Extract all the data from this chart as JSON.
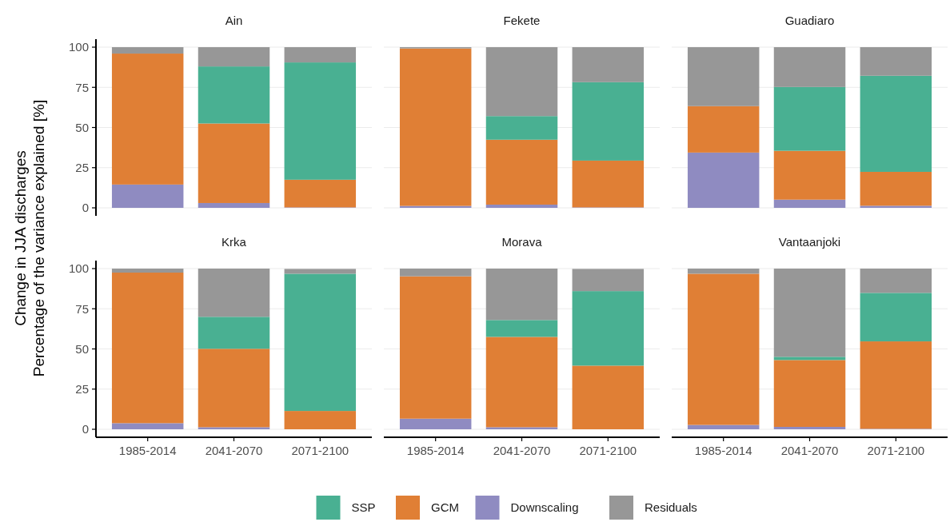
{
  "chart_data": [
    {
      "type": "bar",
      "title": "Ain",
      "ylabel": "Change in JJA discharges\nPercentage of the variance explained [%]",
      "categories": [
        "1985-2014",
        "2041-2070",
        "2071-2100"
      ],
      "stacked": true,
      "ylim": [
        0,
        100
      ],
      "yticks": [
        0,
        25,
        50,
        75,
        100
      ],
      "grid": "y",
      "legend": "bottom",
      "tick_labels": "y",
      "series": [
        {
          "name": "Downscaling",
          "color": "#8f8bc1",
          "values": [
            14.5,
            3,
            0.3
          ]
        },
        {
          "name": "GCM",
          "color": "#e07f35",
          "values": [
            81.5,
            49.5,
            17.2
          ]
        },
        {
          "name": "SSP",
          "color": "#49b092",
          "values": [
            0,
            35.5,
            73
          ]
        },
        {
          "name": "Residuals",
          "color": "#979797",
          "values": [
            4,
            12,
            9.5
          ]
        }
      ]
    },
    {
      "type": "bar",
      "title": "Fekete",
      "categories": [
        "1985-2014",
        "2041-2070",
        "2071-2100"
      ],
      "stacked": true,
      "ylim": [
        0,
        100
      ],
      "yticks": [
        0,
        25,
        50,
        75,
        100
      ],
      "grid": "y",
      "tick_labels": false,
      "series": [
        {
          "name": "Downscaling",
          "color": "#8f8bc1",
          "values": [
            1.2,
            2,
            0.3
          ]
        },
        {
          "name": "GCM",
          "color": "#e07f35",
          "values": [
            98,
            40.4,
            29.1
          ]
        },
        {
          "name": "SSP",
          "color": "#49b092",
          "values": [
            0,
            14.7,
            48.8
          ]
        },
        {
          "name": "Residuals",
          "color": "#979797",
          "values": [
            0.8,
            42.9,
            21.8
          ]
        }
      ]
    },
    {
      "type": "bar",
      "title": "Guadiaro",
      "categories": [
        "1985-2014",
        "2041-2070",
        "2071-2100"
      ],
      "stacked": true,
      "ylim": [
        0,
        100
      ],
      "yticks": [
        0,
        25,
        50,
        75,
        100
      ],
      "grid": "y",
      "tick_labels": false,
      "series": [
        {
          "name": "Downscaling",
          "color": "#8f8bc1",
          "values": [
            34.4,
            5.1,
            1.3
          ]
        },
        {
          "name": "GCM",
          "color": "#e07f35",
          "values": [
            28.9,
            30.4,
            21.1
          ]
        },
        {
          "name": "SSP",
          "color": "#49b092",
          "values": [
            0,
            39.7,
            59.8
          ]
        },
        {
          "name": "Residuals",
          "color": "#979797",
          "values": [
            36.7,
            24.8,
            17.8
          ]
        }
      ]
    },
    {
      "type": "bar",
      "title": "Krka",
      "categories": [
        "1985-2014",
        "2041-2070",
        "2071-2100"
      ],
      "stacked": true,
      "ylim": [
        0,
        100
      ],
      "yticks": [
        0,
        25,
        50,
        75,
        100
      ],
      "grid": "y",
      "series": [
        {
          "name": "Downscaling",
          "color": "#8f8bc1",
          "values": [
            3.8,
            1.3,
            null
          ]
        },
        {
          "name": "GCM",
          "color": "#e07f35",
          "values": [
            93.7,
            48.8,
            11.4
          ]
        },
        {
          "name": "SSP",
          "color": "#49b092",
          "values": [
            0,
            19.9,
            85.4
          ]
        },
        {
          "name": "Residuals",
          "color": "#979797",
          "values": [
            2.5,
            30,
            3
          ]
        }
      ]
    },
    {
      "type": "bar",
      "title": "Morava",
      "categories": [
        "1985-2014",
        "2041-2070",
        "2071-2100"
      ],
      "stacked": true,
      "ylim": [
        0,
        100
      ],
      "yticks": [
        0,
        25,
        50,
        75,
        100
      ],
      "grid": "y",
      "tick_labels": "x",
      "series": [
        {
          "name": "Downscaling",
          "color": "#8f8bc1",
          "values": [
            6.6,
            1.3,
            null
          ]
        },
        {
          "name": "GCM",
          "color": "#e07f35",
          "values": [
            88.6,
            56.2,
            39.6
          ]
        },
        {
          "name": "SSP",
          "color": "#49b092",
          "values": [
            0,
            10.5,
            46.4
          ]
        },
        {
          "name": "Residuals",
          "color": "#979797",
          "values": [
            4.8,
            32,
            13.8
          ]
        }
      ]
    },
    {
      "type": "bar",
      "title": "Vantaanjoki",
      "categories": [
        "1985-2014",
        "2041-2070",
        "2071-2100"
      ],
      "stacked": true,
      "ylim": [
        0,
        100
      ],
      "yticks": [
        0,
        25,
        50,
        75,
        100
      ],
      "grid": "y",
      "tick_labels": "x",
      "series": [
        {
          "name": "Downscaling",
          "color": "#8f8bc1",
          "values": [
            2.7,
            1.5,
            0.3
          ]
        },
        {
          "name": "GCM",
          "color": "#e07f35",
          "values": [
            94.1,
            41.6,
            54.4
          ]
        },
        {
          "name": "SSP",
          "color": "#49b092",
          "values": [
            0,
            2,
            30.2
          ]
        },
        {
          "name": "Residuals",
          "color": "#979797",
          "values": [
            3.2,
            54.9,
            15.1
          ]
        }
      ]
    }
  ]
}
